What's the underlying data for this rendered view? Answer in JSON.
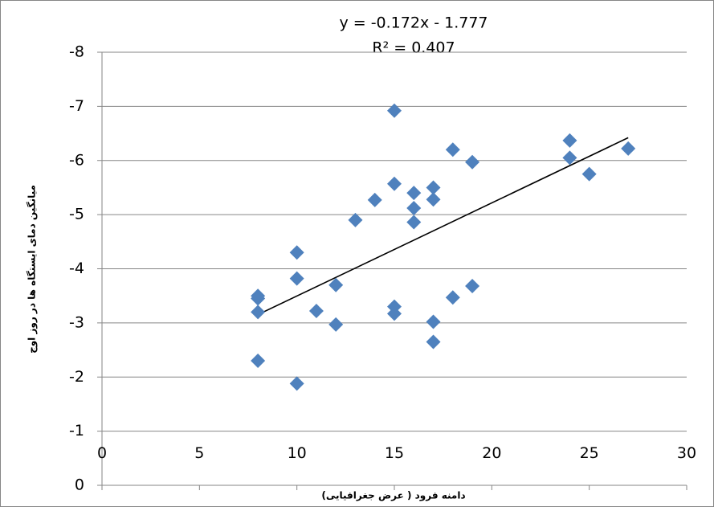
{
  "chart_data": {
    "type": "scatter",
    "annotations": [
      "y = -0.172x - 1.777",
      "R² = 0.407"
    ],
    "xlabel": "دامنه فرود ( عرض جغرافیایی)",
    "ylabel": "میانگین دمای ایستگاه ها در روز اوج",
    "xlim": [
      0,
      30
    ],
    "xticks": [
      0,
      5,
      10,
      15,
      20,
      25,
      30
    ],
    "ylim": [
      0,
      -8
    ],
    "yticks": [
      0,
      -1,
      -2,
      -3,
      -4,
      -5,
      -6,
      -7,
      -8
    ],
    "grid": true,
    "series": [
      {
        "color": "#4f81bd",
        "x": [
          8,
          8,
          8,
          8,
          10,
          10,
          10,
          11,
          12,
          12,
          13,
          14,
          15,
          15,
          15,
          15,
          16,
          16,
          16,
          17,
          17,
          17,
          17,
          18,
          18,
          19,
          19,
          24,
          24,
          25,
          27
        ],
        "values": [
          -3.45,
          -3.5,
          -3.2,
          -2.3,
          -4.3,
          -3.82,
          -1.88,
          -3.22,
          -3.7,
          -2.97,
          -4.9,
          -5.27,
          -6.92,
          -5.57,
          -3.3,
          -3.17,
          -5.4,
          -5.12,
          -4.86,
          -5.5,
          -5.28,
          -3.02,
          -2.65,
          -6.2,
          -3.47,
          -5.97,
          -3.68,
          -6.37,
          -6.05,
          -5.75,
          -6.22
        ]
      }
    ],
    "trendline": {
      "color": "#000000",
      "x": [
        8,
        27
      ],
      "values": [
        -3.153,
        -6.421
      ]
    }
  }
}
